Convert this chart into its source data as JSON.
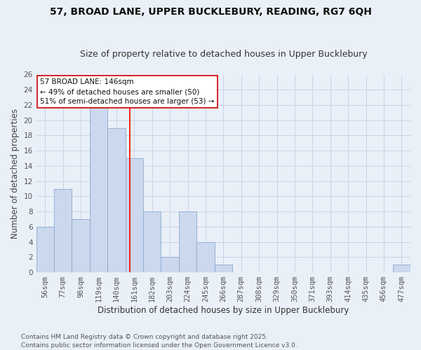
{
  "title1": "57, BROAD LANE, UPPER BUCKLEBURY, READING, RG7 6QH",
  "title2": "Size of property relative to detached houses in Upper Bucklebury",
  "xlabel": "Distribution of detached houses by size in Upper Bucklebury",
  "ylabel": "Number of detached properties",
  "categories": [
    "56sqm",
    "77sqm",
    "98sqm",
    "119sqm",
    "140sqm",
    "161sqm",
    "182sqm",
    "203sqm",
    "224sqm",
    "245sqm",
    "266sqm",
    "287sqm",
    "308sqm",
    "329sqm",
    "350sqm",
    "371sqm",
    "393sqm",
    "414sqm",
    "435sqm",
    "456sqm",
    "477sqm"
  ],
  "values": [
    6,
    11,
    7,
    22,
    19,
    15,
    8,
    2,
    8,
    4,
    1,
    0,
    0,
    0,
    0,
    0,
    0,
    0,
    0,
    0,
    1
  ],
  "bar_color": "#ccd8ed",
  "bar_edge_color": "#88aad0",
  "grid_color": "#c8d4e8",
  "background_color": "#eaf0f8",
  "red_line_x": 4.76,
  "annotation_text": "57 BROAD LANE: 146sqm\n← 49% of detached houses are smaller (50)\n51% of semi-detached houses are larger (53) →",
  "annotation_box_color": "#ffffff",
  "annotation_border_color": "#cc0000",
  "ylim": [
    0,
    26
  ],
  "yticks": [
    0,
    2,
    4,
    6,
    8,
    10,
    12,
    14,
    16,
    18,
    20,
    22,
    24,
    26
  ],
  "footer": "Contains HM Land Registry data © Crown copyright and database right 2025.\nContains public sector information licensed under the Open Government Licence v3.0.",
  "title_fontsize": 10,
  "subtitle_fontsize": 9,
  "xlabel_fontsize": 8.5,
  "ylabel_fontsize": 8.5,
  "tick_fontsize": 7.5,
  "annotation_fontsize": 7.5,
  "footer_fontsize": 6.5
}
